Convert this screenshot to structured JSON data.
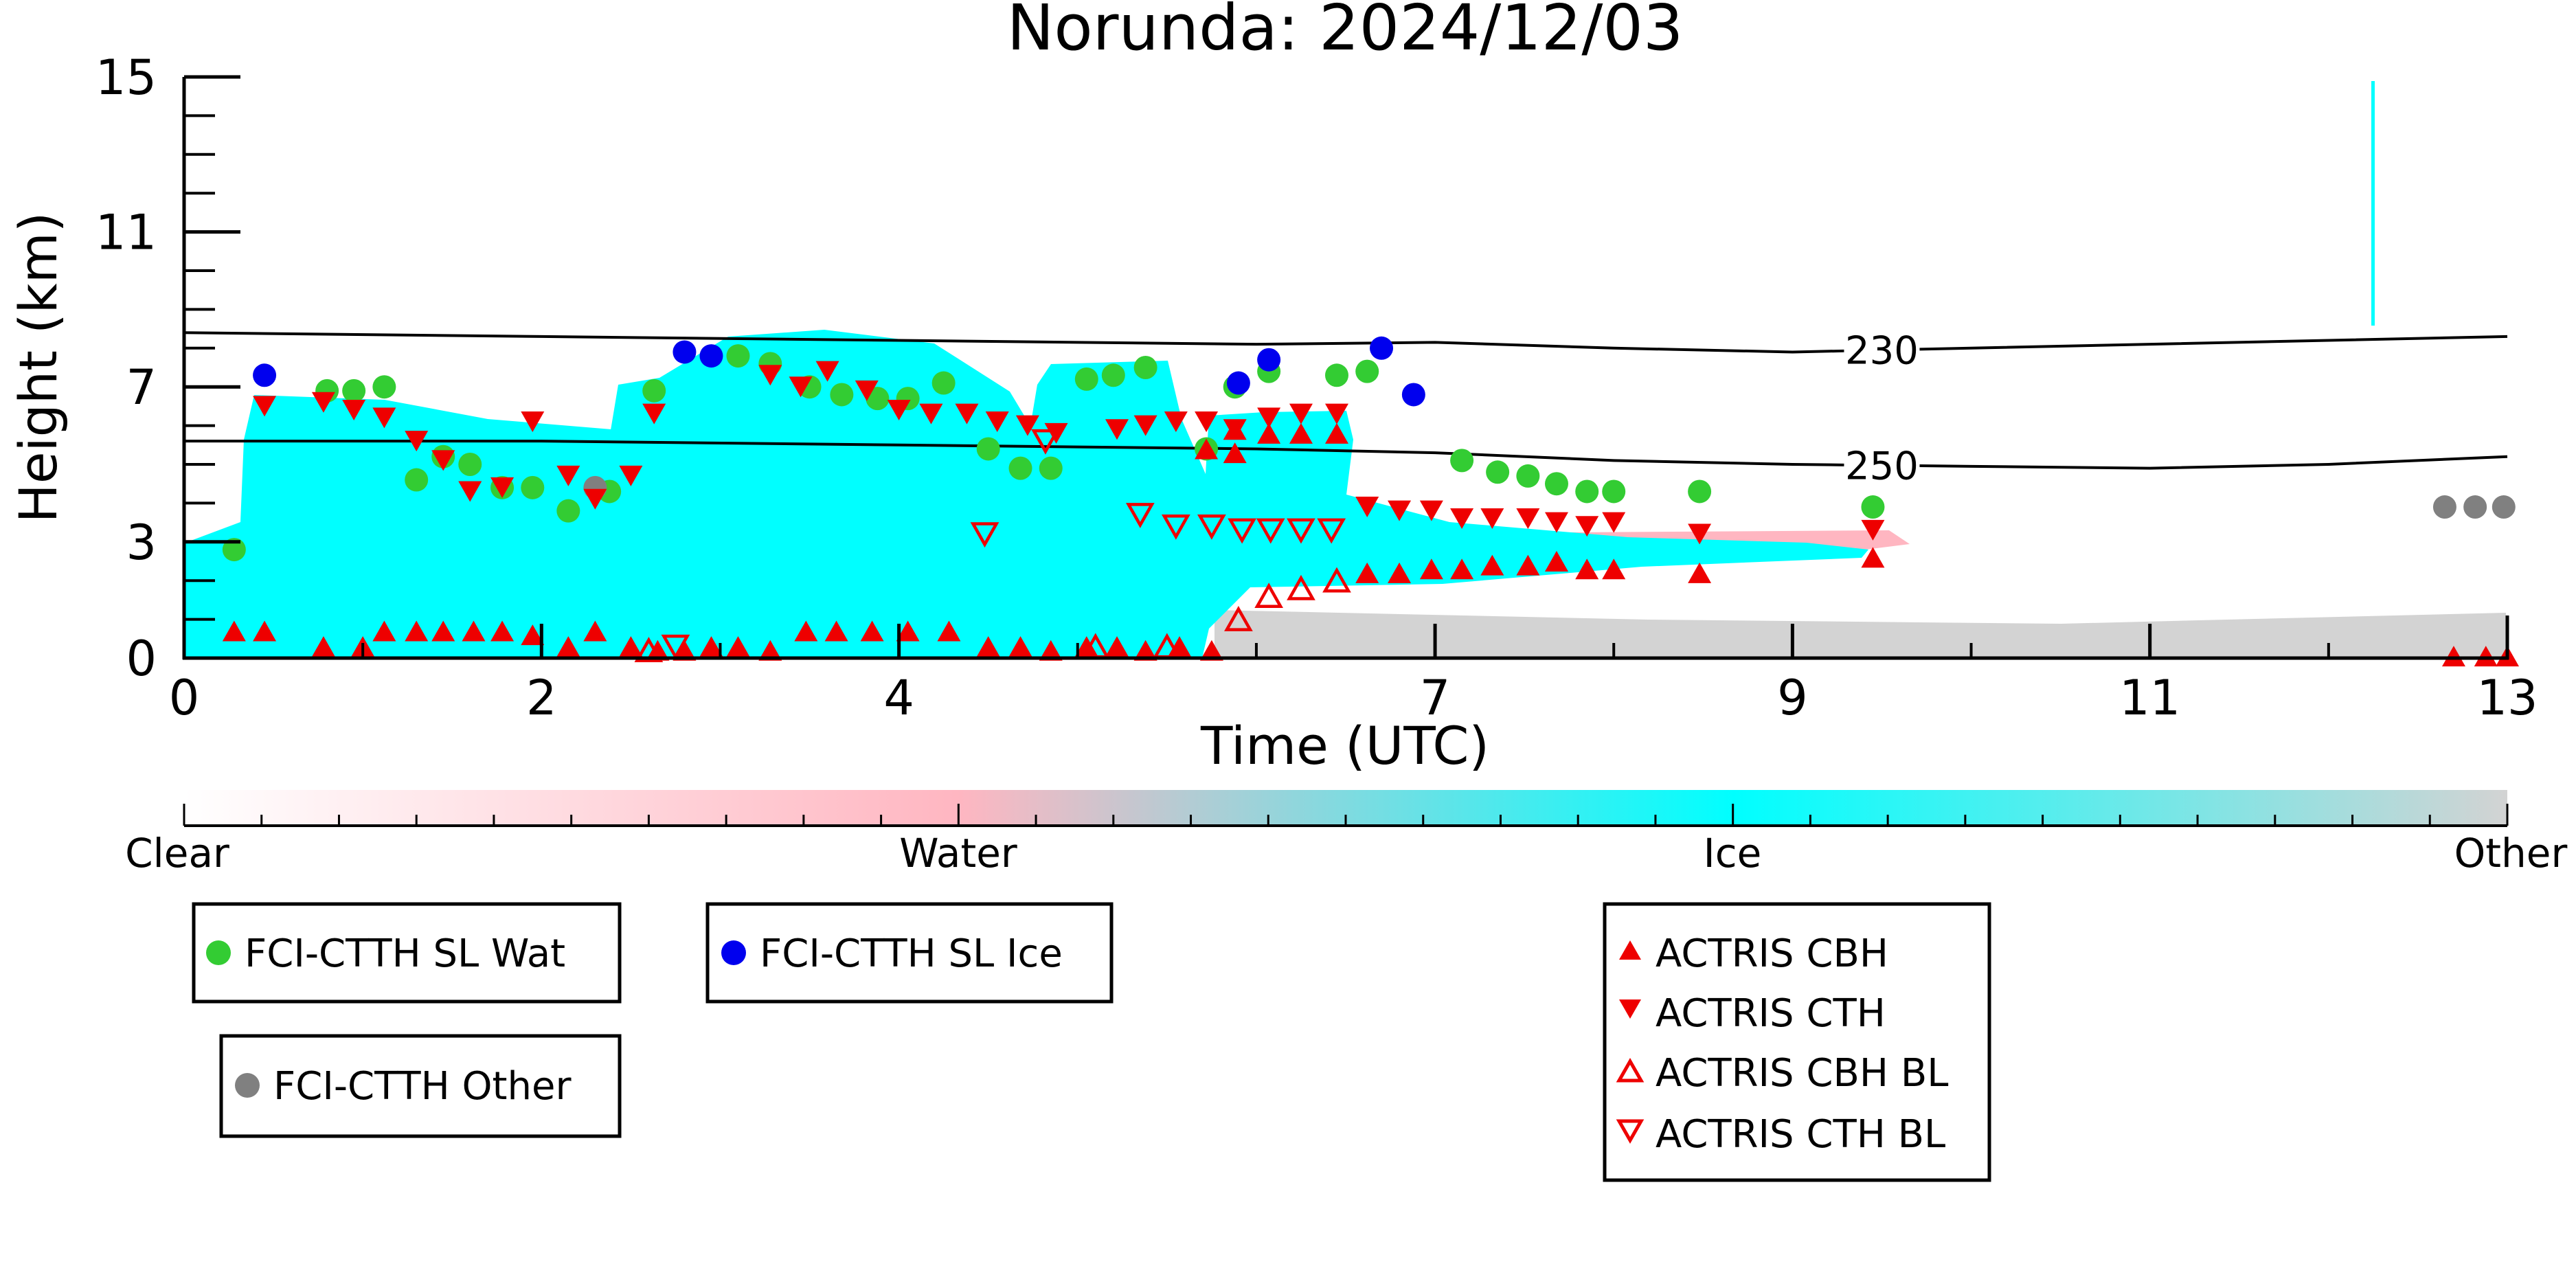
{
  "chart_data": {
    "type": "scatter",
    "title": "Norunda: 2024/12/03",
    "xlabel": "Time (UTC)",
    "ylabel": "Height (km)",
    "xlim": [
      0,
      13
    ],
    "ylim": [
      0,
      15
    ],
    "x_ticks": [
      0,
      2,
      4,
      7,
      9,
      11,
      13
    ],
    "x_tick_labels": [
      "0",
      "2",
      "4",
      "7",
      "9",
      "11",
      "13"
    ],
    "y_ticks": [
      0,
      3,
      7,
      11,
      15
    ],
    "y_tick_labels": [
      "0",
      "3",
      "7",
      "11",
      "15"
    ],
    "grid": false,
    "colorbar": {
      "labels": [
        "Clear",
        "Water",
        "Ice",
        "Other"
      ],
      "colors": [
        "#ffffff",
        "#ffb6c1",
        "#00ffff",
        "#d3d3d3"
      ]
    },
    "contours": [
      {
        "label": "230",
        "label_x": 9.5,
        "points": [
          [
            0,
            8.4
          ],
          [
            2,
            8.3
          ],
          [
            4,
            8.2
          ],
          [
            5,
            8.15
          ],
          [
            6,
            8.1
          ],
          [
            7,
            8.15
          ],
          [
            8,
            8.0
          ],
          [
            9,
            7.9
          ],
          [
            10,
            8.0
          ],
          [
            11,
            8.1
          ],
          [
            12,
            8.2
          ],
          [
            13,
            8.3
          ]
        ]
      },
      {
        "label": "250",
        "label_x": 9.5,
        "points": [
          [
            0,
            5.6
          ],
          [
            2,
            5.6
          ],
          [
            4,
            5.5
          ],
          [
            5,
            5.45
          ],
          [
            6,
            5.4
          ],
          [
            7,
            5.3
          ],
          [
            8,
            5.1
          ],
          [
            9,
            5.0
          ],
          [
            10,
            4.95
          ],
          [
            11,
            4.9
          ],
          [
            12,
            5.0
          ],
          [
            13,
            5.2
          ]
        ]
      }
    ],
    "series": [
      {
        "name": "FCI-CTTH SL Wat",
        "marker": "circle",
        "color": "#33cc33",
        "points": [
          [
            0.28,
            2.8
          ],
          [
            0.8,
            6.9
          ],
          [
            0.95,
            6.9
          ],
          [
            1.12,
            7.0
          ],
          [
            1.3,
            4.6
          ],
          [
            1.45,
            5.2
          ],
          [
            1.6,
            5.0
          ],
          [
            1.78,
            4.4
          ],
          [
            1.95,
            4.4
          ],
          [
            2.15,
            3.8
          ],
          [
            2.38,
            4.3
          ],
          [
            2.63,
            6.9
          ],
          [
            3.1,
            7.8
          ],
          [
            3.28,
            7.6
          ],
          [
            3.5,
            7.0
          ],
          [
            3.68,
            6.8
          ],
          [
            3.88,
            6.7
          ],
          [
            4.05,
            6.7
          ],
          [
            4.25,
            7.1
          ],
          [
            4.5,
            5.4
          ],
          [
            4.68,
            4.9
          ],
          [
            4.85,
            4.9
          ],
          [
            5.05,
            7.2
          ],
          [
            5.2,
            7.3
          ],
          [
            5.38,
            7.5
          ],
          [
            5.72,
            5.4
          ],
          [
            5.88,
            7.0
          ],
          [
            6.07,
            7.4
          ],
          [
            6.45,
            7.3
          ],
          [
            6.62,
            7.4
          ],
          [
            7.15,
            5.1
          ],
          [
            7.35,
            4.8
          ],
          [
            7.52,
            4.7
          ],
          [
            7.68,
            4.5
          ],
          [
            7.85,
            4.3
          ],
          [
            8.0,
            4.3
          ],
          [
            8.48,
            4.3
          ],
          [
            9.45,
            3.9
          ]
        ]
      },
      {
        "name": "FCI-CTTH SL Ice",
        "marker": "circle",
        "color": "#0000ee",
        "points": [
          [
            0.45,
            7.3
          ],
          [
            2.8,
            7.9
          ],
          [
            2.95,
            7.8
          ],
          [
            5.9,
            7.1
          ],
          [
            6.07,
            7.7
          ],
          [
            6.7,
            8.0
          ],
          [
            6.88,
            6.8
          ]
        ]
      },
      {
        "name": "FCI-CTTH Other",
        "marker": "circle",
        "color": "#808080",
        "points": [
          [
            2.3,
            4.4
          ],
          [
            12.65,
            3.9
          ],
          [
            12.82,
            3.9
          ],
          [
            12.98,
            3.9
          ]
        ]
      },
      {
        "name": "ACTRIS CBH",
        "marker": "triangle-up",
        "color": "#ee0000",
        "points": [
          [
            0.28,
            0.7
          ],
          [
            0.45,
            0.7
          ],
          [
            0.78,
            0.3
          ],
          [
            1.0,
            0.3
          ],
          [
            1.12,
            0.7
          ],
          [
            1.3,
            0.7
          ],
          [
            1.45,
            0.7
          ],
          [
            1.62,
            0.7
          ],
          [
            1.78,
            0.7
          ],
          [
            1.95,
            0.6
          ],
          [
            2.15,
            0.3
          ],
          [
            2.3,
            0.7
          ],
          [
            2.5,
            0.3
          ],
          [
            2.65,
            0.2
          ],
          [
            2.8,
            0.2
          ],
          [
            2.95,
            0.3
          ],
          [
            3.1,
            0.3
          ],
          [
            3.28,
            0.2
          ],
          [
            3.48,
            0.7
          ],
          [
            3.65,
            0.7
          ],
          [
            3.85,
            0.7
          ],
          [
            4.05,
            0.7
          ],
          [
            4.28,
            0.7
          ],
          [
            4.5,
            0.3
          ],
          [
            4.68,
            0.3
          ],
          [
            4.85,
            0.2
          ],
          [
            5.05,
            0.3
          ],
          [
            5.22,
            0.3
          ],
          [
            5.38,
            0.2
          ],
          [
            5.57,
            0.3
          ],
          [
            5.75,
            0.2
          ],
          [
            5.72,
            5.4
          ],
          [
            5.88,
            5.3
          ],
          [
            5.88,
            5.9
          ],
          [
            6.07,
            5.8
          ],
          [
            6.25,
            5.8
          ],
          [
            6.45,
            5.8
          ],
          [
            6.62,
            2.2
          ],
          [
            6.8,
            2.2
          ],
          [
            6.98,
            2.3
          ],
          [
            7.15,
            2.3
          ],
          [
            7.32,
            2.4
          ],
          [
            7.52,
            2.4
          ],
          [
            7.68,
            2.5
          ],
          [
            7.85,
            2.3
          ],
          [
            8.0,
            2.3
          ],
          [
            8.48,
            2.2
          ],
          [
            9.45,
            2.6
          ],
          [
            12.7,
            0.05
          ],
          [
            12.88,
            0.05
          ],
          [
            13.0,
            0.05
          ]
        ]
      },
      {
        "name": "ACTRIS CTH",
        "marker": "triangle-down",
        "color": "#ee0000",
        "points": [
          [
            0.45,
            6.5
          ],
          [
            0.78,
            6.6
          ],
          [
            0.95,
            6.4
          ],
          [
            1.12,
            6.2
          ],
          [
            1.3,
            5.6
          ],
          [
            1.45,
            5.1
          ],
          [
            1.6,
            4.3
          ],
          [
            1.78,
            4.4
          ],
          [
            1.95,
            6.1
          ],
          [
            2.15,
            4.7
          ],
          [
            2.3,
            4.1
          ],
          [
            2.5,
            4.7
          ],
          [
            2.63,
            6.3
          ],
          [
            3.28,
            7.3
          ],
          [
            3.45,
            7.0
          ],
          [
            3.6,
            7.4
          ],
          [
            3.82,
            6.9
          ],
          [
            4.0,
            6.4
          ],
          [
            4.18,
            6.3
          ],
          [
            4.38,
            6.3
          ],
          [
            4.55,
            6.1
          ],
          [
            4.72,
            6.0
          ],
          [
            4.88,
            5.8
          ],
          [
            5.22,
            5.9
          ],
          [
            5.38,
            6.0
          ],
          [
            5.55,
            6.1
          ],
          [
            5.72,
            6.1
          ],
          [
            5.88,
            5.9
          ],
          [
            6.07,
            6.2
          ],
          [
            6.25,
            6.3
          ],
          [
            6.45,
            6.3
          ],
          [
            6.62,
            3.9
          ],
          [
            6.8,
            3.8
          ],
          [
            6.98,
            3.8
          ],
          [
            7.15,
            3.6
          ],
          [
            7.32,
            3.6
          ],
          [
            7.52,
            3.6
          ],
          [
            7.68,
            3.5
          ],
          [
            7.85,
            3.4
          ],
          [
            8.0,
            3.5
          ],
          [
            8.48,
            3.2
          ],
          [
            9.45,
            3.3
          ]
        ]
      },
      {
        "name": "ACTRIS CBH BL",
        "marker": "triangle-up-open",
        "color": "#ee0000",
        "points": [
          [
            2.6,
            0.2
          ],
          [
            5.1,
            0.3
          ],
          [
            5.5,
            0.3
          ],
          [
            5.9,
            1.0
          ],
          [
            6.07,
            1.6
          ],
          [
            6.25,
            1.8
          ],
          [
            6.45,
            2.0
          ]
        ]
      },
      {
        "name": "ACTRIS CTH BL",
        "marker": "triangle-down-open",
        "color": "#ee0000",
        "points": [
          [
            2.75,
            0.3
          ],
          [
            4.48,
            3.2
          ],
          [
            4.82,
            5.6
          ],
          [
            5.35,
            3.7
          ],
          [
            5.55,
            3.4
          ],
          [
            5.75,
            3.4
          ],
          [
            5.92,
            3.3
          ],
          [
            6.08,
            3.3
          ],
          [
            6.25,
            3.3
          ],
          [
            6.42,
            3.3
          ]
        ]
      }
    ]
  }
}
